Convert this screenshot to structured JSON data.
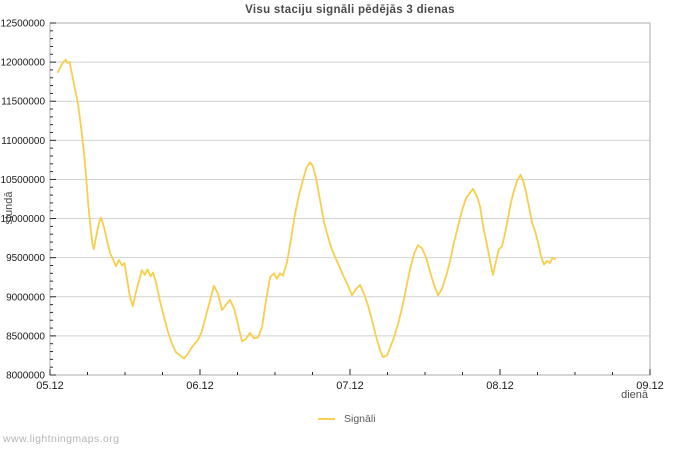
{
  "watermark": "www.lightningmaps.org",
  "colors": {
    "line": "#f9ce4d",
    "grid": "#d2d2d2",
    "border": "#ababab",
    "ticks": "#2a2a2a",
    "tick_label": "#1a1a1a",
    "title": "#4a4a4a",
    "axis_title": "#4d4d4d",
    "legend_text": "#595959",
    "watermark": "#b5b5b5",
    "background": "#ffffff"
  },
  "chart_data": {
    "type": "line",
    "title": "Visu staciju signāli pēdējās 3 dienas",
    "xlabel": "dienā",
    "ylabel": "stundā",
    "grid": "horizontal-major-only",
    "legend_position": "bottom-center",
    "xlim_days": [
      0,
      4
    ],
    "ylim": [
      8000000,
      12500000
    ],
    "x_tick_days": [
      0,
      1,
      2,
      3,
      4
    ],
    "x_tick_labels": [
      "05.12",
      "06.12",
      "07.12",
      "08.12",
      "09.12"
    ],
    "x_minor_step_days": 0.25,
    "y_ticks": [
      8000000,
      8500000,
      9000000,
      9500000,
      10000000,
      10500000,
      11000000,
      11500000,
      12000000,
      12500000
    ],
    "y_tick_step": 500000,
    "y_minor_step": 100000,
    "series": [
      {
        "name": "Signāli",
        "color": "#f9ce4d",
        "points": [
          [
            0.053,
            11870000
          ],
          [
            0.075,
            11960000
          ],
          [
            0.093,
            12010000
          ],
          [
            0.105,
            12030000
          ],
          [
            0.115,
            11990000
          ],
          [
            0.13,
            12000000
          ],
          [
            0.147,
            11850000
          ],
          [
            0.167,
            11650000
          ],
          [
            0.187,
            11470000
          ],
          [
            0.207,
            11170000
          ],
          [
            0.227,
            10830000
          ],
          [
            0.24,
            10550000
          ],
          [
            0.253,
            10220000
          ],
          [
            0.267,
            9940000
          ],
          [
            0.283,
            9680000
          ],
          [
            0.293,
            9610000
          ],
          [
            0.307,
            9760000
          ],
          [
            0.327,
            9950000
          ],
          [
            0.34,
            10010000
          ],
          [
            0.36,
            9890000
          ],
          [
            0.38,
            9720000
          ],
          [
            0.4,
            9560000
          ],
          [
            0.42,
            9480000
          ],
          [
            0.44,
            9390000
          ],
          [
            0.46,
            9470000
          ],
          [
            0.48,
            9400000
          ],
          [
            0.497,
            9430000
          ],
          [
            0.513,
            9230000
          ],
          [
            0.533,
            9000000
          ],
          [
            0.553,
            8880000
          ],
          [
            0.573,
            9060000
          ],
          [
            0.593,
            9200000
          ],
          [
            0.613,
            9340000
          ],
          [
            0.633,
            9280000
          ],
          [
            0.65,
            9350000
          ],
          [
            0.67,
            9260000
          ],
          [
            0.687,
            9310000
          ],
          [
            0.707,
            9180000
          ],
          [
            0.733,
            8950000
          ],
          [
            0.76,
            8740000
          ],
          [
            0.787,
            8550000
          ],
          [
            0.813,
            8400000
          ],
          [
            0.84,
            8290000
          ],
          [
            0.867,
            8250000
          ],
          [
            0.893,
            8210000
          ],
          [
            0.92,
            8270000
          ],
          [
            0.933,
            8320000
          ],
          [
            0.96,
            8390000
          ],
          [
            0.987,
            8450000
          ],
          [
            1.013,
            8560000
          ],
          [
            1.04,
            8760000
          ],
          [
            1.067,
            8950000
          ],
          [
            1.093,
            9140000
          ],
          [
            1.12,
            9040000
          ],
          [
            1.147,
            8830000
          ],
          [
            1.173,
            8900000
          ],
          [
            1.2,
            8960000
          ],
          [
            1.227,
            8850000
          ],
          [
            1.253,
            8650000
          ],
          [
            1.28,
            8430000
          ],
          [
            1.307,
            8460000
          ],
          [
            1.333,
            8540000
          ],
          [
            1.36,
            8470000
          ],
          [
            1.387,
            8480000
          ],
          [
            1.413,
            8610000
          ],
          [
            1.44,
            8950000
          ],
          [
            1.467,
            9250000
          ],
          [
            1.493,
            9300000
          ],
          [
            1.513,
            9230000
          ],
          [
            1.533,
            9300000
          ],
          [
            1.553,
            9270000
          ],
          [
            1.58,
            9440000
          ],
          [
            1.607,
            9740000
          ],
          [
            1.633,
            10050000
          ],
          [
            1.66,
            10300000
          ],
          [
            1.687,
            10500000
          ],
          [
            1.71,
            10650000
          ],
          [
            1.733,
            10720000
          ],
          [
            1.753,
            10670000
          ],
          [
            1.773,
            10520000
          ],
          [
            1.8,
            10240000
          ],
          [
            1.827,
            9950000
          ],
          [
            1.853,
            9770000
          ],
          [
            1.88,
            9600000
          ],
          [
            1.907,
            9480000
          ],
          [
            1.933,
            9370000
          ],
          [
            1.96,
            9250000
          ],
          [
            1.987,
            9140000
          ],
          [
            2.013,
            9020000
          ],
          [
            2.04,
            9100000
          ],
          [
            2.067,
            9150000
          ],
          [
            2.093,
            9040000
          ],
          [
            2.12,
            8890000
          ],
          [
            2.147,
            8700000
          ],
          [
            2.173,
            8500000
          ],
          [
            2.2,
            8320000
          ],
          [
            2.22,
            8230000
          ],
          [
            2.247,
            8250000
          ],
          [
            2.267,
            8350000
          ],
          [
            2.293,
            8480000
          ],
          [
            2.32,
            8650000
          ],
          [
            2.347,
            8860000
          ],
          [
            2.373,
            9100000
          ],
          [
            2.4,
            9350000
          ],
          [
            2.427,
            9550000
          ],
          [
            2.453,
            9660000
          ],
          [
            2.48,
            9620000
          ],
          [
            2.507,
            9500000
          ],
          [
            2.533,
            9330000
          ],
          [
            2.56,
            9150000
          ],
          [
            2.587,
            9020000
          ],
          [
            2.613,
            9100000
          ],
          [
            2.64,
            9260000
          ],
          [
            2.667,
            9450000
          ],
          [
            2.693,
            9690000
          ],
          [
            2.72,
            9900000
          ],
          [
            2.747,
            10100000
          ],
          [
            2.773,
            10260000
          ],
          [
            2.82,
            10380000
          ],
          [
            2.847,
            10280000
          ],
          [
            2.867,
            10150000
          ],
          [
            2.893,
            9850000
          ],
          [
            2.92,
            9600000
          ],
          [
            2.94,
            9400000
          ],
          [
            2.953,
            9280000
          ],
          [
            2.973,
            9450000
          ],
          [
            2.993,
            9610000
          ],
          [
            3.013,
            9640000
          ],
          [
            3.033,
            9800000
          ],
          [
            3.053,
            10000000
          ],
          [
            3.073,
            10200000
          ],
          [
            3.093,
            10360000
          ],
          [
            3.113,
            10480000
          ],
          [
            3.137,
            10560000
          ],
          [
            3.153,
            10490000
          ],
          [
            3.173,
            10340000
          ],
          [
            3.193,
            10150000
          ],
          [
            3.213,
            9950000
          ],
          [
            3.233,
            9840000
          ],
          [
            3.253,
            9700000
          ],
          [
            3.273,
            9520000
          ],
          [
            3.293,
            9410000
          ],
          [
            3.313,
            9460000
          ],
          [
            3.333,
            9430000
          ],
          [
            3.35,
            9500000
          ],
          [
            3.367,
            9480000
          ]
        ]
      }
    ]
  }
}
